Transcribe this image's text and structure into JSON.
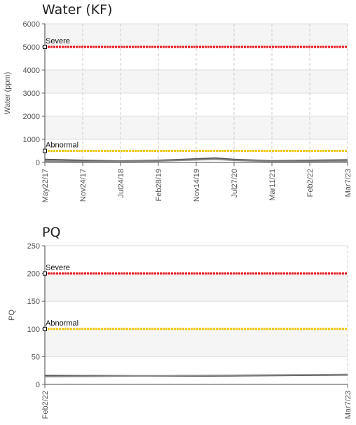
{
  "chart_data": [
    {
      "type": "line",
      "title": "Water (KF)",
      "xlabel": "",
      "ylabel": "Water (ppm)",
      "ylim": [
        0,
        6000
      ],
      "yticks": [
        "0",
        "1000",
        "2000",
        "3000",
        "4000",
        "5000",
        "6000"
      ],
      "xticks": [
        "May22/17",
        "Nov24/17",
        "Jul24/18",
        "Feb28/19",
        "Nov14/19",
        "Jul27/20",
        "Mar11/21",
        "Feb2/22",
        "Mar7/23"
      ],
      "thresholds": [
        {
          "label": "Severe",
          "value": 5000,
          "color": "#e8191c"
        },
        {
          "label": "Abnormal",
          "value": 500,
          "color": "#f2c80f"
        }
      ],
      "series": [
        {
          "color": "#555555",
          "x": [
            0,
            1,
            2,
            3,
            4,
            4.5,
            5,
            6,
            7,
            8
          ],
          "values": [
            130,
            90,
            60,
            90,
            150,
            190,
            130,
            70,
            90,
            110
          ]
        },
        {
          "color": "#888888",
          "x": [
            0,
            1,
            2,
            3,
            4,
            4.5,
            5,
            6,
            7,
            8
          ],
          "values": [
            60,
            40,
            40,
            60,
            110,
            140,
            90,
            40,
            50,
            60
          ]
        }
      ],
      "grid": true
    },
    {
      "type": "line",
      "title": "PQ",
      "xlabel": "",
      "ylabel": "PQ",
      "ylim": [
        0,
        250
      ],
      "yticks": [
        "0",
        "50",
        "100",
        "150",
        "200",
        "250"
      ],
      "xticks": [
        "Feb2/22",
        "Mar7/23"
      ],
      "thresholds": [
        {
          "label": "Severe",
          "value": 200,
          "color": "#e8191c"
        },
        {
          "label": "Abnormal",
          "value": 100,
          "color": "#f2c80f"
        }
      ],
      "series": [
        {
          "color": "#555555",
          "x": [
            0,
            0.5,
            1
          ],
          "values": [
            16,
            15,
            17
          ]
        },
        {
          "color": "#888888",
          "x": [
            0,
            0.5,
            1
          ],
          "values": [
            14,
            16,
            18
          ]
        }
      ],
      "grid": true
    }
  ]
}
